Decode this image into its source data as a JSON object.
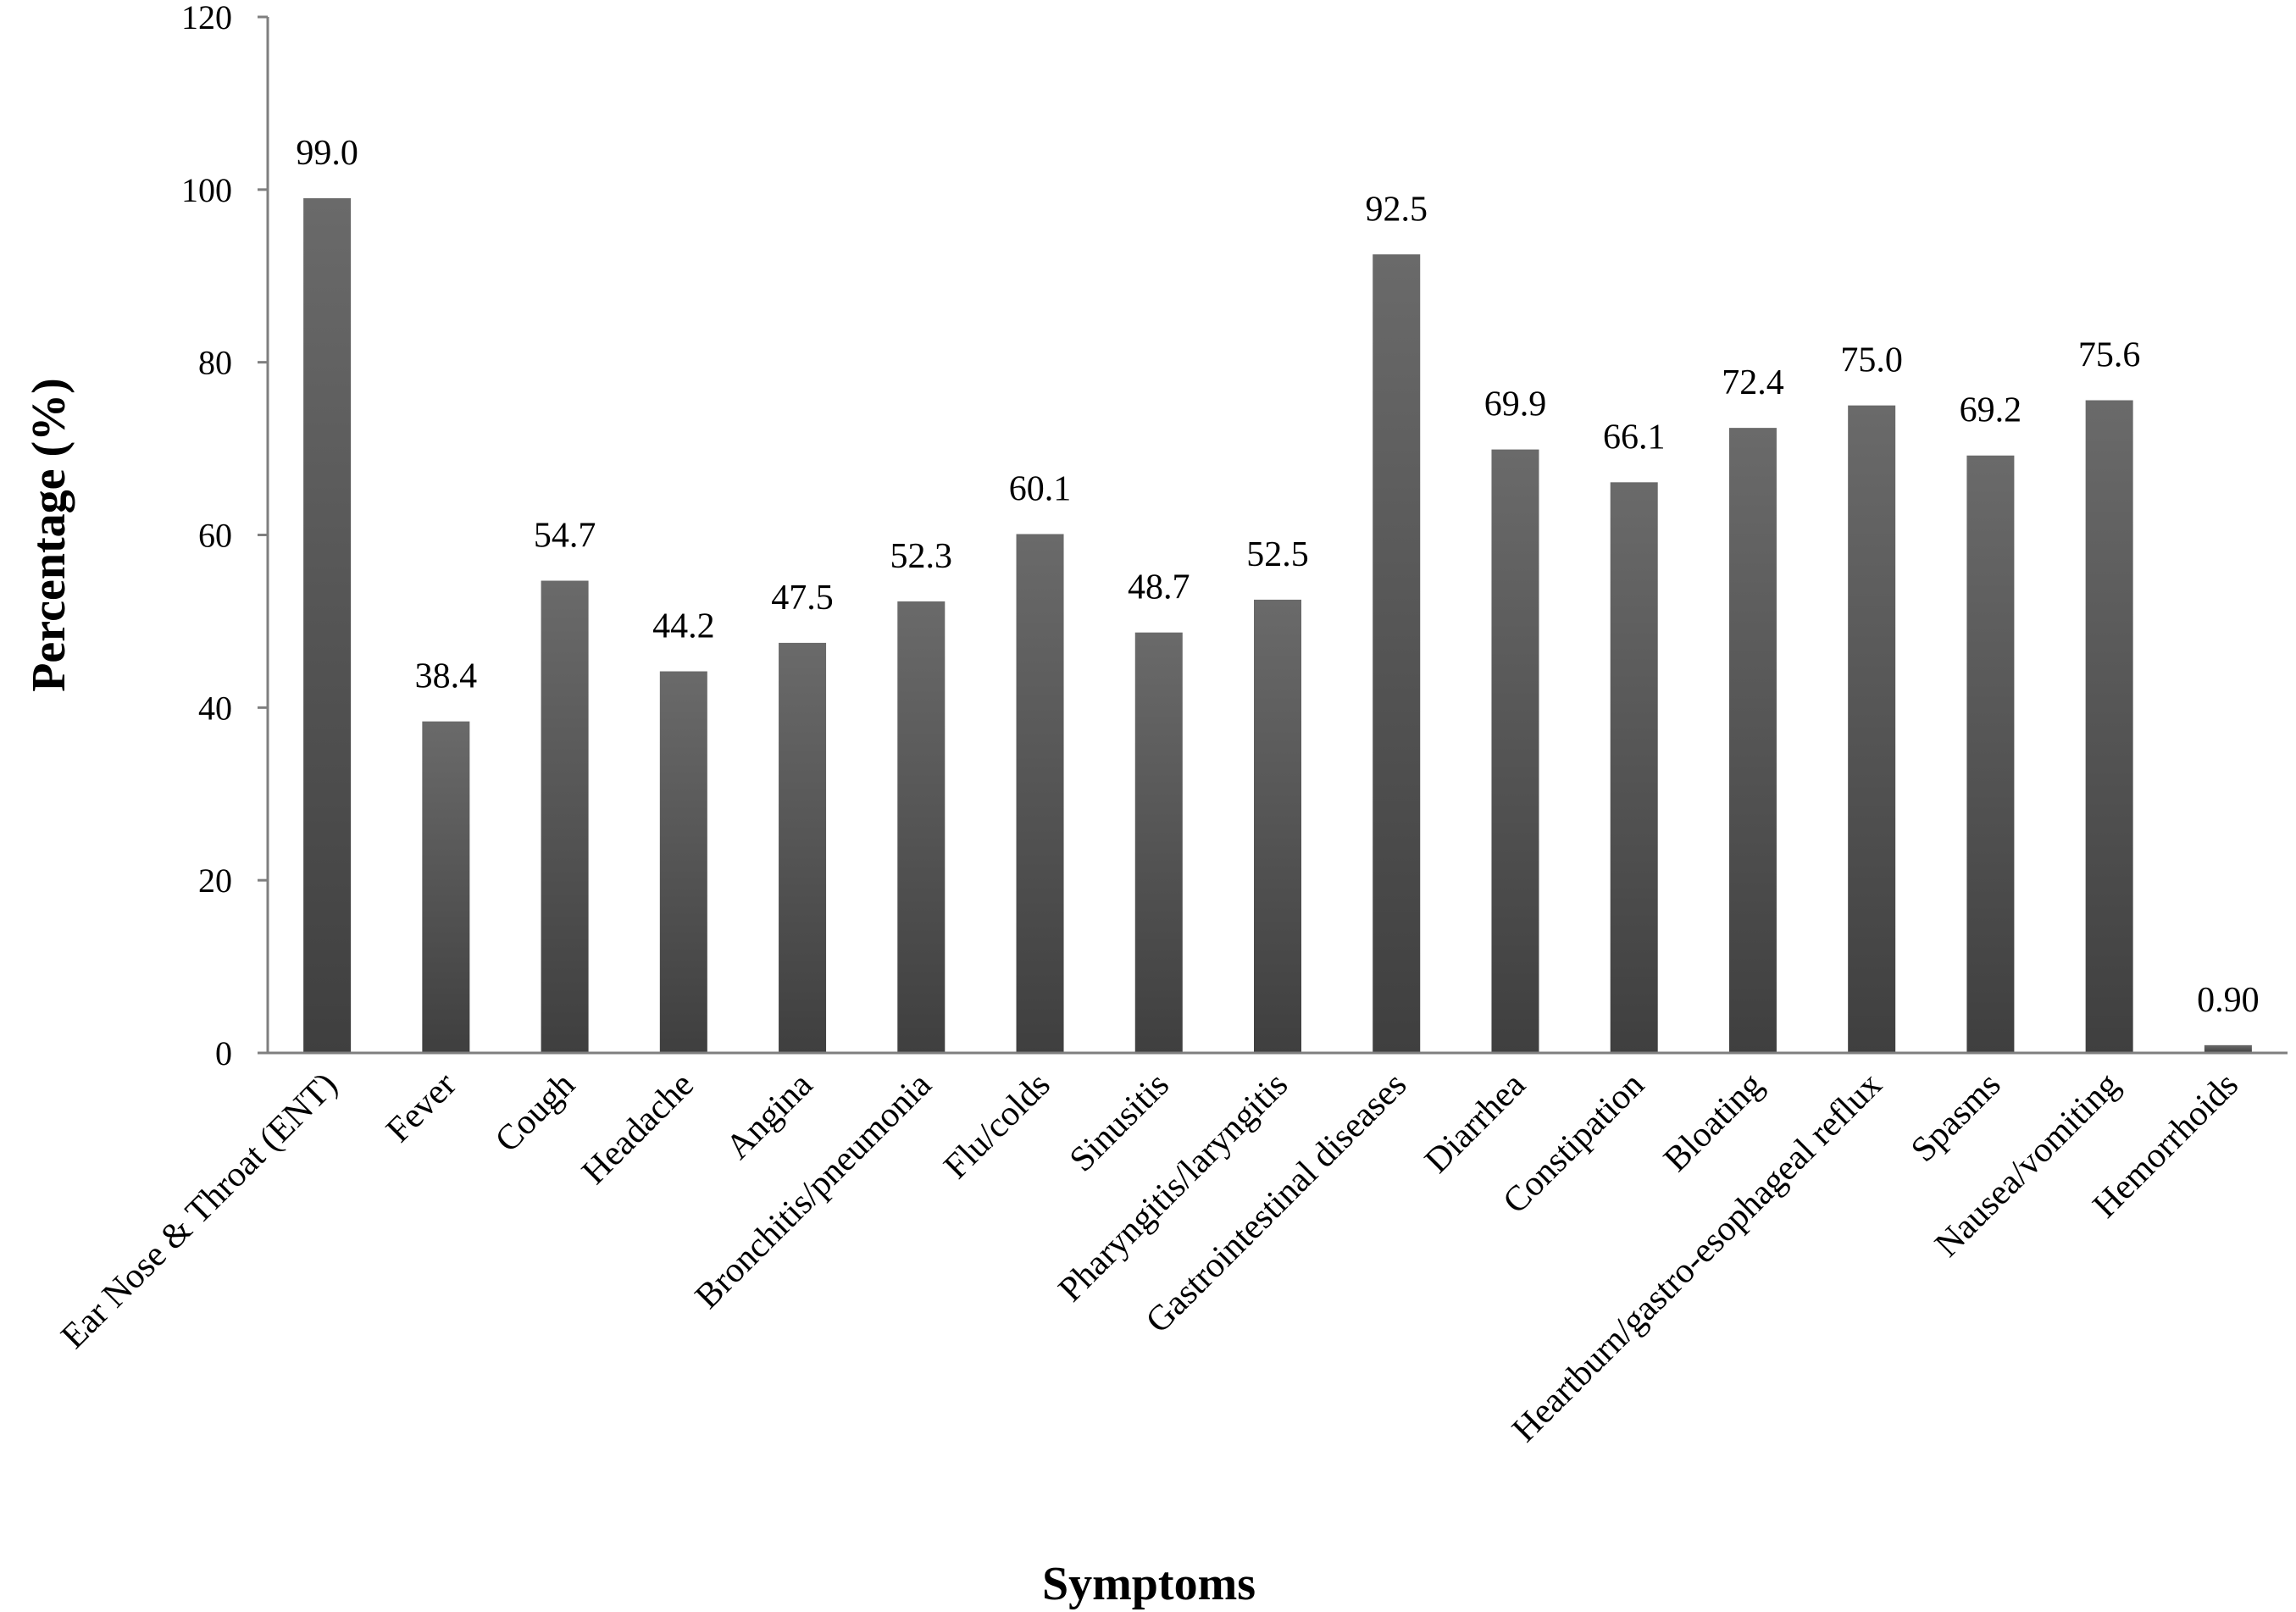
{
  "chart_data": {
    "type": "bar",
    "title": "",
    "xlabel": "Symptoms",
    "ylabel": "Percentage (%)",
    "ylim": [
      0,
      120
    ],
    "yticks": [
      0,
      20,
      40,
      60,
      80,
      100,
      120
    ],
    "grid": false,
    "legend": "none",
    "bar_color": "#5a5a5a",
    "categories": [
      "Ear Nose & Throat (ENT)",
      "Fever",
      "Cough",
      "Headache",
      "Angina",
      "Bronchitis/pneumonia",
      "Flu/colds",
      "Sinusitis",
      "Pharyngitis/laryngitis",
      "Gastrointestinal diseases",
      "Diarrhea",
      "Constipation",
      "Bloating",
      "Heartburn/gastro-esophageal reflux",
      "Spasms",
      "Nausea/vomiting",
      "Hemorrhoids"
    ],
    "values": [
      99.0,
      38.4,
      54.7,
      44.2,
      47.5,
      52.3,
      60.1,
      48.7,
      52.5,
      92.5,
      69.9,
      66.1,
      72.4,
      75.0,
      69.2,
      75.6,
      0.9
    ],
    "data_labels": [
      "99.0",
      "38.4",
      "54.7",
      "44.2",
      "47.5",
      "52.3",
      "60.1",
      "48.7",
      "52.5",
      "92.5",
      "69.9",
      "66.1",
      "72.4",
      "75.0",
      "69.2",
      "75.6",
      "0.90"
    ]
  }
}
